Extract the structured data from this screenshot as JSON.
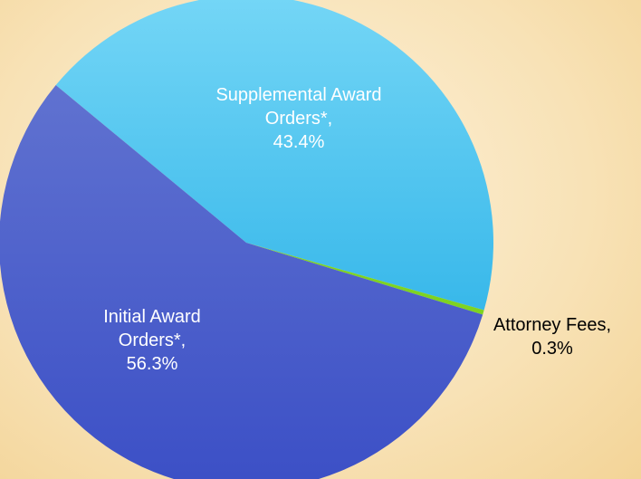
{
  "chart_data": {
    "type": "pie",
    "categories": [
      "Supplemental Award Orders*",
      "Attorney Fees",
      "Initial Award Orders*"
    ],
    "values": [
      43.4,
      0.3,
      56.3
    ],
    "value_labels": [
      "43.4%",
      "0.3%",
      "56.3%"
    ],
    "colors": [
      "#4cc6f0",
      "#7ed321",
      "#4659cc"
    ]
  }
}
